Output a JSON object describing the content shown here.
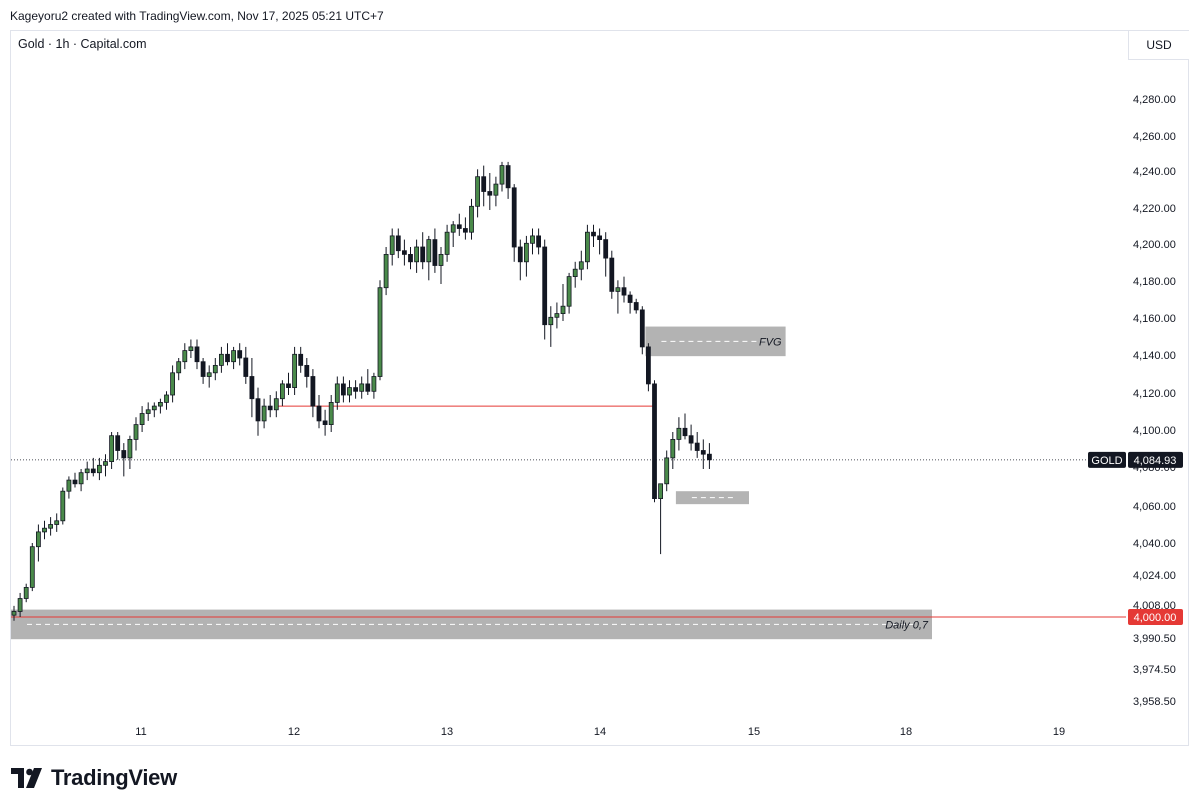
{
  "header": {
    "author_line": "Kageyoru2 created with TradingView.com, Nov 17, 2025 05:21 UTC+7"
  },
  "symbol_line": "Gold · 1h · Capital.com",
  "currency": "USD",
  "branding": {
    "logo_text": "TradingView",
    "logo_icon": "tradingview-logo-icon"
  },
  "colors": {
    "up": "#4a8a4a",
    "down": "#131722",
    "level_line": "#e53935",
    "zone": "#a6a6a6",
    "price_label_bg": "#131722",
    "level_label_bg": "#e53935"
  },
  "chart_data": {
    "type": "candlestick",
    "title": "",
    "xlabel": "",
    "ylabel": "",
    "x_ticks": [
      "11",
      "12",
      "13",
      "14",
      "15",
      "18",
      "19"
    ],
    "y_ticks": [
      "4,280.00",
      "4,260.00",
      "4,240.00",
      "4,220.00",
      "4,200.00",
      "4,180.00",
      "4,160.00",
      "4,140.00",
      "4,120.00",
      "4,100.00",
      "4,080.00",
      "4,060.00",
      "4,040.00",
      "4,024.00",
      "4,008.00",
      "3,990.50",
      "3,974.50",
      "3,958.50"
    ],
    "current_price": {
      "symbol": "GOLD",
      "value": 4084.93,
      "label": "4,084.93"
    },
    "level_label": {
      "value": 4000.0,
      "label": "4,000.00"
    },
    "candles": [
      [
        4001,
        4006,
        3998,
        4003
      ],
      [
        4003,
        4013,
        4000,
        4010
      ],
      [
        4010,
        4018,
        4008,
        4016
      ],
      [
        4016,
        4040,
        4014,
        4038
      ],
      [
        4038,
        4050,
        4030,
        4046
      ],
      [
        4046,
        4052,
        4042,
        4048
      ],
      [
        4048,
        4054,
        4044,
        4050
      ],
      [
        4050,
        4056,
        4046,
        4052
      ],
      [
        4052,
        4070,
        4050,
        4068
      ],
      [
        4068,
        4076,
        4064,
        4074
      ],
      [
        4074,
        4078,
        4070,
        4072
      ],
      [
        4072,
        4080,
        4068,
        4078
      ],
      [
        4078,
        4084,
        4074,
        4080
      ],
      [
        4080,
        4086,
        4076,
        4078
      ],
      [
        4078,
        4086,
        4074,
        4082
      ],
      [
        4082,
        4088,
        4076,
        4084
      ],
      [
        4084,
        4100,
        4080,
        4098
      ],
      [
        4098,
        4100,
        4085,
        4090
      ],
      [
        4090,
        4094,
        4076,
        4086
      ],
      [
        4086,
        4098,
        4080,
        4096
      ],
      [
        4096,
        4108,
        4090,
        4104
      ],
      [
        4104,
        4114,
        4100,
        4110
      ],
      [
        4110,
        4116,
        4106,
        4112
      ],
      [
        4112,
        4116,
        4108,
        4114
      ],
      [
        4114,
        4118,
        4110,
        4116
      ],
      [
        4116,
        4122,
        4112,
        4120
      ],
      [
        4120,
        4136,
        4116,
        4132
      ],
      [
        4132,
        4140,
        4128,
        4138
      ],
      [
        4138,
        4148,
        4134,
        4144
      ],
      [
        4144,
        4150,
        4140,
        4146
      ],
      [
        4146,
        4150,
        4134,
        4138
      ],
      [
        4138,
        4140,
        4126,
        4130
      ],
      [
        4130,
        4136,
        4124,
        4132
      ],
      [
        4132,
        4140,
        4128,
        4136
      ],
      [
        4136,
        4146,
        4132,
        4142
      ],
      [
        4142,
        4148,
        4136,
        4138
      ],
      [
        4138,
        4146,
        4134,
        4144
      ],
      [
        4144,
        4148,
        4136,
        4140
      ],
      [
        4140,
        4146,
        4126,
        4130
      ],
      [
        4130,
        4140,
        4108,
        4118
      ],
      [
        4118,
        4124,
        4098,
        4106
      ],
      [
        4106,
        4118,
        4102,
        4114
      ],
      [
        4114,
        4120,
        4108,
        4112
      ],
      [
        4112,
        4122,
        4108,
        4118
      ],
      [
        4118,
        4128,
        4114,
        4126
      ],
      [
        4126,
        4132,
        4120,
        4124
      ],
      [
        4124,
        4146,
        4120,
        4142
      ],
      [
        4142,
        4146,
        4132,
        4136
      ],
      [
        4136,
        4140,
        4124,
        4130
      ],
      [
        4130,
        4134,
        4108,
        4114
      ],
      [
        4114,
        4120,
        4102,
        4106
      ],
      [
        4106,
        4112,
        4098,
        4104
      ],
      [
        4104,
        4120,
        4100,
        4116
      ],
      [
        4116,
        4130,
        4112,
        4126
      ],
      [
        4126,
        4130,
        4116,
        4120
      ],
      [
        4120,
        4128,
        4116,
        4124
      ],
      [
        4124,
        4128,
        4118,
        4122
      ],
      [
        4122,
        4130,
        4118,
        4126
      ],
      [
        4126,
        4134,
        4120,
        4122
      ],
      [
        4122,
        4132,
        4118,
        4130
      ],
      [
        4130,
        4182,
        4128,
        4178
      ],
      [
        4178,
        4200,
        4174,
        4196
      ],
      [
        4196,
        4210,
        4190,
        4206
      ],
      [
        4206,
        4210,
        4194,
        4198
      ],
      [
        4198,
        4204,
        4190,
        4196
      ],
      [
        4196,
        4200,
        4188,
        4192
      ],
      [
        4192,
        4204,
        4186,
        4200
      ],
      [
        4200,
        4208,
        4188,
        4192
      ],
      [
        4192,
        4206,
        4182,
        4204
      ],
      [
        4204,
        4210,
        4186,
        4190
      ],
      [
        4190,
        4200,
        4180,
        4196
      ],
      [
        4196,
        4212,
        4192,
        4208
      ],
      [
        4208,
        4214,
        4200,
        4212
      ],
      [
        4212,
        4218,
        4206,
        4210
      ],
      [
        4210,
        4216,
        4204,
        4208
      ],
      [
        4208,
        4226,
        4204,
        4222
      ],
      [
        4222,
        4242,
        4216,
        4238
      ],
      [
        4238,
        4244,
        4222,
        4230
      ],
      [
        4230,
        4240,
        4220,
        4228
      ],
      [
        4228,
        4238,
        4222,
        4234
      ],
      [
        4234,
        4246,
        4230,
        4244
      ],
      [
        4244,
        4246,
        4226,
        4232
      ],
      [
        4232,
        4234,
        4192,
        4200
      ],
      [
        4200,
        4204,
        4182,
        4192
      ],
      [
        4192,
        4206,
        4184,
        4202
      ],
      [
        4202,
        4210,
        4196,
        4206
      ],
      [
        4206,
        4210,
        4196,
        4200
      ],
      [
        4200,
        4204,
        4150,
        4158
      ],
      [
        4158,
        4168,
        4146,
        4162
      ],
      [
        4162,
        4170,
        4156,
        4164
      ],
      [
        4164,
        4180,
        4160,
        4168
      ],
      [
        4168,
        4186,
        4164,
        4184
      ],
      [
        4184,
        4192,
        4178,
        4188
      ],
      [
        4188,
        4198,
        4182,
        4192
      ],
      [
        4192,
        4212,
        4188,
        4208
      ],
      [
        4208,
        4212,
        4200,
        4206
      ],
      [
        4206,
        4210,
        4196,
        4204
      ],
      [
        4204,
        4208,
        4184,
        4194
      ],
      [
        4194,
        4198,
        4172,
        4176
      ],
      [
        4176,
        4182,
        4164,
        4178
      ],
      [
        4178,
        4184,
        4170,
        4174
      ],
      [
        4174,
        4176,
        4164,
        4170
      ],
      [
        4170,
        4172,
        4164,
        4166
      ],
      [
        4166,
        4168,
        4142,
        4146
      ],
      [
        4146,
        4148,
        4122,
        4126
      ],
      [
        4126,
        4128,
        4062,
        4064
      ],
      [
        4064,
        4072,
        4034,
        4072
      ],
      [
        4072,
        4090,
        4068,
        4086
      ],
      [
        4086,
        4100,
        4080,
        4096
      ],
      [
        4096,
        4108,
        4090,
        4102
      ],
      [
        4102,
        4110,
        4096,
        4098
      ],
      [
        4098,
        4104,
        4090,
        4094
      ],
      [
        4094,
        4100,
        4086,
        4090
      ],
      [
        4090,
        4096,
        4080,
        4088
      ],
      [
        4088,
        4094,
        4080,
        4085
      ]
    ],
    "annotations": [
      {
        "type": "zone",
        "label": "Daily 0,7",
        "y_top": 4004,
        "y_bottom": 3988,
        "x_start_index": -1,
        "x_end_index": 150
      },
      {
        "type": "hline",
        "y": 4000,
        "x_start_index": -1,
        "x_end_index": 200
      },
      {
        "type": "zone",
        "label": "FVG",
        "y_top": 4157,
        "y_bottom": 4141,
        "x_start_index": 104,
        "x_end_index": 126
      },
      {
        "type": "zone",
        "label": "",
        "y_top": 4068,
        "y_bottom": 4061,
        "x_start_index": 109,
        "x_end_index": 120
      },
      {
        "type": "hline",
        "y": 4114,
        "x_start_index": 43,
        "x_end_index": 105
      },
      {
        "type": "price-line",
        "y": 4084.93
      }
    ]
  }
}
